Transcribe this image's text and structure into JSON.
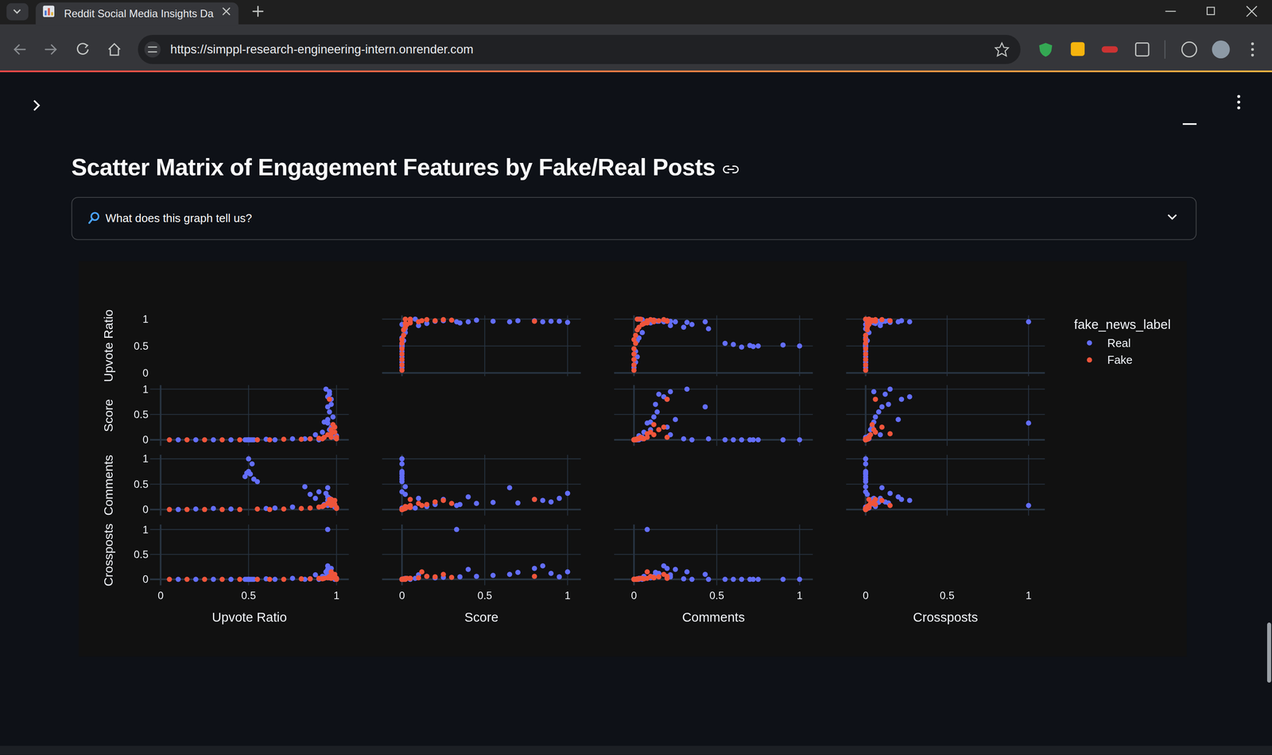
{
  "browser": {
    "tab_title": "Reddit Social Media Insights Da",
    "url": "https://simppl-research-engineering-intern.onrender.com"
  },
  "page": {
    "heading": "Scatter Matrix of Engagement Features by Fake/Real Posts",
    "expander": "What does this graph tell us?"
  },
  "chart_data": {
    "type": "scatter_matrix",
    "dimensions": [
      "Upvote Ratio",
      "Score",
      "Comments",
      "Crossposts"
    ],
    "ranges": [
      [
        -0.06,
        1.07
      ],
      [
        -0.12,
        1.08
      ],
      [
        -0.12,
        1.08
      ],
      [
        -0.12,
        1.1
      ]
    ],
    "ticks": [
      0,
      0.5,
      1
    ],
    "grid": true,
    "legend": "right",
    "legend_title": "fake_news_label",
    "marker": "circle",
    "series": [
      {
        "name": "Real",
        "color": "#636efa",
        "values": [
          [
            0.94,
            1.0,
            0.32,
            0.15
          ],
          [
            0.95,
            0.85,
            0.18,
            0.27
          ],
          [
            0.96,
            0.9,
            0.15,
            0.12
          ],
          [
            0.95,
            0.65,
            0.43,
            0.1
          ],
          [
            0.97,
            0.8,
            0.2,
            0.22
          ],
          [
            0.96,
            0.55,
            0.14,
            0.08
          ],
          [
            0.95,
            0.33,
            0.08,
            1.0
          ],
          [
            0.98,
            0.45,
            0.12,
            0.06
          ],
          [
            0.93,
            0.35,
            0.1,
            0.05
          ],
          [
            0.97,
            0.25,
            0.2,
            0.04
          ],
          [
            0.5,
            0.0,
            1.0,
            0.0
          ],
          [
            0.52,
            0.0,
            0.9,
            0.0
          ],
          [
            0.5,
            0.0,
            0.75,
            0.0
          ],
          [
            0.49,
            0.0,
            0.72,
            0.0
          ],
          [
            0.51,
            0.0,
            0.7,
            0.0
          ],
          [
            0.48,
            0.0,
            0.65,
            0.0
          ],
          [
            0.53,
            0.0,
            0.6,
            0.0
          ],
          [
            0.55,
            0.0,
            0.55,
            0.0
          ],
          [
            0.9,
            0.0,
            0.35,
            0.0
          ],
          [
            0.82,
            0.02,
            0.45,
            0.0
          ],
          [
            0.85,
            0.02,
            0.3,
            0.01
          ],
          [
            0.3,
            0.0,
            0.02,
            0.0
          ],
          [
            0.1,
            0.0,
            0.0,
            0.0
          ],
          [
            0.2,
            0.0,
            0.01,
            0.0
          ],
          [
            0.6,
            0.01,
            0.02,
            0.01
          ],
          [
            0.75,
            0.02,
            0.05,
            0.02
          ],
          [
            0.92,
            0.15,
            0.06,
            0.06
          ],
          [
            0.96,
            0.2,
            0.1,
            0.03
          ],
          [
            0.99,
            0.05,
            0.05,
            0.0
          ],
          [
            1.0,
            0.08,
            0.03,
            0.02
          ],
          [
            0.88,
            0.1,
            0.22,
            0.09
          ],
          [
            0.97,
            0.7,
            0.13,
            0.14
          ],
          [
            0.96,
            0.95,
            0.22,
            0.05
          ],
          [
            0.4,
            0.0,
            0.01,
            0.0
          ],
          [
            0.65,
            0.0,
            0.03,
            0.0
          ],
          [
            0.95,
            0.4,
            0.25,
            0.2
          ]
        ]
      },
      {
        "name": "Fake",
        "color": "#ef553b",
        "values": [
          [
            0.05,
            0.0,
            0.0,
            0.0
          ],
          [
            0.15,
            0.0,
            0.0,
            0.0
          ],
          [
            0.25,
            0.0,
            0.0,
            0.0
          ],
          [
            0.35,
            0.0,
            0.0,
            0.0
          ],
          [
            0.45,
            0.0,
            0.0,
            0.0
          ],
          [
            0.55,
            0.0,
            0.01,
            0.0
          ],
          [
            0.62,
            0.0,
            0.0,
            0.0
          ],
          [
            0.7,
            0.01,
            0.01,
            0.0
          ],
          [
            0.8,
            0.01,
            0.02,
            0.01
          ],
          [
            0.85,
            0.02,
            0.03,
            0.01
          ],
          [
            0.9,
            0.03,
            0.05,
            0.02
          ],
          [
            0.93,
            0.05,
            0.08,
            0.02
          ],
          [
            0.95,
            0.1,
            0.12,
            0.03
          ],
          [
            0.97,
            0.2,
            0.15,
            0.05
          ],
          [
            0.98,
            0.3,
            0.12,
            0.04
          ],
          [
            0.99,
            0.15,
            0.1,
            0.06
          ],
          [
            1.0,
            0.05,
            0.04,
            0.02
          ],
          [
            0.99,
            0.25,
            0.18,
            0.1
          ],
          [
            0.96,
            0.8,
            0.2,
            0.06
          ],
          [
            0.97,
            0.12,
            0.08,
            0.15
          ],
          [
            1.0,
            0.02,
            0.02,
            0.0
          ],
          [
            0.92,
            0.02,
            0.06,
            0.01
          ],
          [
            0.97,
            0.05,
            0.2,
            0.02
          ]
        ]
      }
    ]
  }
}
